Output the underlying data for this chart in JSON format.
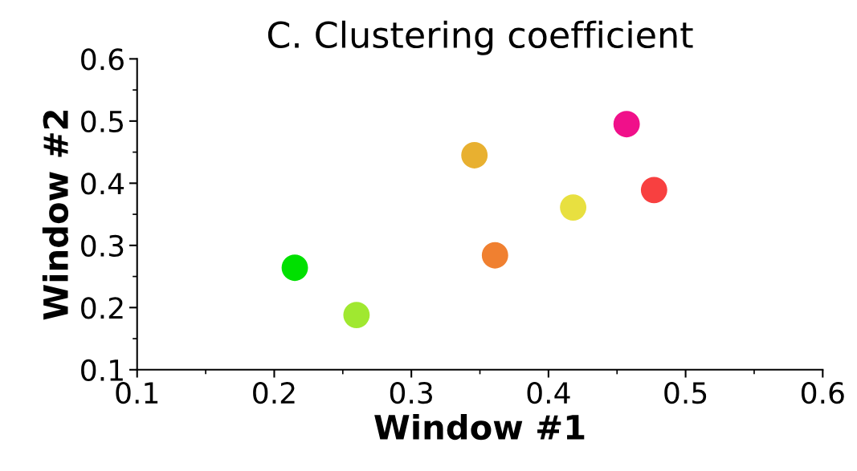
{
  "chart_data": {
    "type": "scatter",
    "title": "C. Clustering coefficient",
    "xlabel": "Window #1",
    "ylabel": "Window #2",
    "x": [
      0.215,
      0.26,
      0.346,
      0.361,
      0.418,
      0.457,
      0.477
    ],
    "values": [
      0.264,
      0.188,
      0.445,
      0.284,
      0.361,
      0.495,
      0.389
    ],
    "colors": [
      "#00e000",
      "#a0e830",
      "#e8b030",
      "#f08030",
      "#e8e040",
      "#f0108a",
      "#f84040"
    ],
    "xlim": [
      0.1,
      0.6
    ],
    "ylim": [
      0.1,
      0.6
    ],
    "xticks": [
      0.1,
      0.2,
      0.3,
      0.4,
      0.5,
      0.6
    ],
    "yticks": [
      0.1,
      0.2,
      0.3,
      0.4,
      0.5,
      0.6
    ],
    "marker": "circle",
    "grid": false,
    "legend": false
  }
}
